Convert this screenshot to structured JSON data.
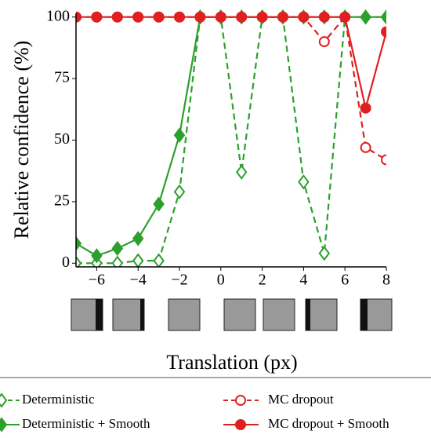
{
  "chart_data": {
    "type": "line",
    "ylabel": "Relative confidence (%)",
    "xlabel": "Translation (px)",
    "x": [
      -7,
      -6,
      -5,
      -4,
      -3,
      -2,
      -1,
      0,
      1,
      2,
      3,
      4,
      5,
      6,
      7,
      8
    ],
    "series": [
      {
        "name": "Deterministic",
        "color": "#2ca02c",
        "dashed": true,
        "marker": "diamond",
        "filled": false,
        "values": [
          0,
          0,
          0,
          1,
          1,
          29,
          100,
          100,
          37,
          100,
          100,
          33,
          4,
          100,
          100,
          100
        ]
      },
      {
        "name": "Deterministic + Smooth",
        "color": "#2ca02c",
        "dashed": false,
        "marker": "diamond",
        "filled": true,
        "values": [
          8,
          3,
          6,
          10,
          24,
          52,
          100,
          100,
          100,
          100,
          100,
          100,
          100,
          100,
          100,
          100
        ]
      },
      {
        "name": "MC dropout",
        "color": "#e02020",
        "dashed": true,
        "marker": "circle",
        "filled": false,
        "values": [
          100,
          100,
          100,
          100,
          100,
          100,
          100,
          100,
          100,
          100,
          100,
          100,
          90,
          100,
          47,
          42
        ]
      },
      {
        "name": "MC dropout + Smooth",
        "color": "#e02020",
        "dashed": false,
        "marker": "circle",
        "filled": true,
        "values": [
          100,
          100,
          100,
          100,
          100,
          100,
          100,
          100,
          100,
          100,
          100,
          100,
          100,
          100,
          63,
          94
        ]
      }
    ],
    "xlim": [
      -7,
      8
    ],
    "xticks": [
      {
        "value": -6,
        "label": "−6"
      },
      {
        "value": -4,
        "label": "−4"
      },
      {
        "value": -2,
        "label": "−2"
      },
      0,
      2,
      4,
      6,
      8
    ],
    "ylim": [
      -1.5,
      101.5
    ],
    "yticks": [
      0,
      25,
      50,
      75,
      100
    ],
    "grid": false,
    "legend": "bottom"
  }
}
